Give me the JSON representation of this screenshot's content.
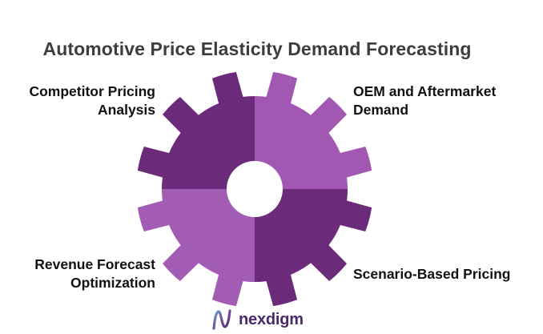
{
  "title": "Automotive Price Elasticity Demand Forecasting",
  "segments": [
    {
      "lines": [
        "Competitor Pricing",
        "Analysis"
      ],
      "color": "#6b2a7a"
    },
    {
      "lines": [
        "OEM and Aftermarket",
        "Demand"
      ],
      "color": "#a258b2"
    },
    {
      "lines": [
        "Revenue Forecast",
        "Optimization"
      ],
      "color": "#a35cb3"
    },
    {
      "lines": [
        "Scenario-Based Pricing"
      ],
      "color": "#6b2a7a"
    }
  ],
  "logo": {
    "text": "nexdigm",
    "icon": "nexdigm-logo-icon",
    "color": "#4a2a6a"
  }
}
